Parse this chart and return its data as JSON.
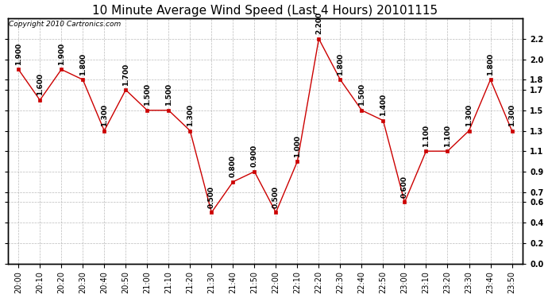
{
  "title": "10 Minute Average Wind Speed (Last 4 Hours) 20101115",
  "copyright": "Copyright 2010 Cartronics.com",
  "x_labels": [
    "20:00",
    "20:10",
    "20:20",
    "20:30",
    "20:40",
    "20:50",
    "21:00",
    "21:10",
    "21:20",
    "21:30",
    "21:40",
    "21:50",
    "22:00",
    "22:10",
    "22:20",
    "22:30",
    "22:40",
    "22:50",
    "23:00",
    "23:10",
    "23:20",
    "23:30",
    "23:40",
    "23:50"
  ],
  "y_values": [
    1.9,
    1.6,
    1.9,
    1.8,
    1.3,
    1.7,
    1.5,
    1.5,
    1.3,
    0.5,
    0.8,
    0.9,
    0.5,
    1.0,
    2.2,
    1.8,
    1.5,
    1.4,
    0.6,
    1.1,
    1.1,
    1.3,
    1.8,
    1.3
  ],
  "line_color": "#cc0000",
  "marker_color": "#cc0000",
  "bg_color": "#ffffff",
  "grid_color": "#aaaaaa",
  "ylim": [
    0.0,
    2.4
  ],
  "yticks_right": [
    0.0,
    0.2,
    0.4,
    0.6,
    0.7,
    0.9,
    1.1,
    1.3,
    1.5,
    1.7,
    1.8,
    2.0,
    2.2
  ],
  "title_fontsize": 11,
  "annot_fontsize": 6.5,
  "tick_fontsize": 7,
  "copyright_fontsize": 6.5
}
